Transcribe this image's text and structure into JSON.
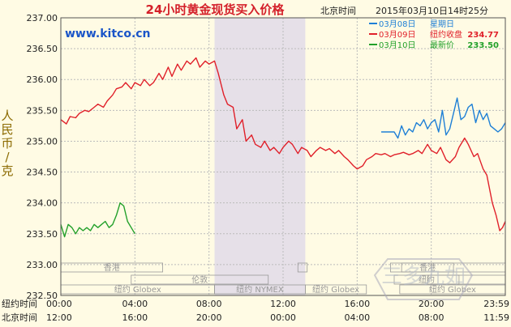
{
  "chart_data": {
    "type": "line",
    "title": "24小时黄金现货买入价格",
    "source": "www.kitco.cn",
    "time_label": "北京时间",
    "date_line": "2015年03月10日14时25分",
    "ylabel": "人民币/克",
    "ylim": [
      232.5,
      237.0
    ],
    "y_ticks": [
      "237.00",
      "236.50",
      "236.00",
      "235.50",
      "235.00",
      "234.50",
      "234.00",
      "233.50",
      "233.00",
      "232.50"
    ],
    "y_tick_values": [
      237.0,
      236.5,
      236.0,
      235.5,
      235.0,
      234.5,
      234.0,
      233.5,
      233.0,
      232.5
    ],
    "x_hours": 24,
    "x_row1_label": "纽约时间",
    "x_row1_ticks": [
      "00:00",
      "04:00",
      "08:00",
      "12:00",
      "16:00",
      "20:00",
      "23:59"
    ],
    "x_row2_label": "北京时间",
    "x_row2_ticks": [
      "12:00",
      "16:00",
      "20:00",
      "00:00",
      "04:00",
      "08:00",
      "11:59"
    ],
    "x_tick_hours": [
      0,
      4,
      8,
      12,
      16,
      20,
      24
    ],
    "shaded_hours": [
      8.3,
      13.2
    ],
    "legend": [
      {
        "date": "03月08日",
        "note": "星期日",
        "color": "#1e7fd6"
      },
      {
        "date": "03月09日",
        "note": "纽约收盘",
        "value": "234.77",
        "color": "#e0202a"
      },
      {
        "date": "03月10日",
        "note": "最新价",
        "value": "233.50",
        "color": "#22a02a"
      }
    ],
    "markets": [
      {
        "name": "香港",
        "row": 1,
        "start": 0,
        "end": 5.5
      },
      {
        "name": "",
        "row": 1,
        "start": 12.8,
        "end": 13.3
      },
      {
        "name": "",
        "row": 1,
        "start": 17.8,
        "end": 24
      },
      {
        "name": "香港",
        "row": 1,
        "start": 18.4,
        "end": 21.2
      },
      {
        "name": "伦敦",
        "row": 2,
        "start": 3.8,
        "end": 11.2
      },
      {
        "name": "",
        "row": 2,
        "start": 19.8,
        "end": 24
      },
      {
        "name": "纽约",
        "row": 2,
        "start": 18.0,
        "end": 21.5
      },
      {
        "name": "纽约 Globex",
        "row": 3,
        "start": 0,
        "end": 8.3
      },
      {
        "name": "纽约 NYMEX",
        "row": 3,
        "start": 8.3,
        "end": 13.2
      },
      {
        "name": "纽约 Globex",
        "row": 3,
        "start": 13.2,
        "end": 16.5
      },
      {
        "name": "纽约 Globex",
        "row": 3,
        "start": 18.3,
        "end": 24
      }
    ],
    "series": [
      {
        "name": "03月09日",
        "color": "#e0202a",
        "x": [
          0,
          0.3,
          0.5,
          0.8,
          1.0,
          1.3,
          1.5,
          1.8,
          2.0,
          2.3,
          2.5,
          2.8,
          3.0,
          3.3,
          3.5,
          3.8,
          4.0,
          4.3,
          4.5,
          4.8,
          5.0,
          5.3,
          5.5,
          5.8,
          6.0,
          6.3,
          6.5,
          6.8,
          7.0,
          7.3,
          7.5,
          7.8,
          8.0,
          8.3,
          8.5,
          8.8,
          9.0,
          9.3,
          9.5,
          9.8,
          10.0,
          10.3,
          10.5,
          10.8,
          11.0,
          11.3,
          11.5,
          11.8,
          12.0,
          12.3,
          12.5,
          12.8,
          13.0,
          13.3,
          13.5,
          13.8,
          14.0,
          14.3,
          14.5,
          14.8,
          15.0,
          15.3,
          15.5,
          15.8,
          16.0,
          16.3,
          16.5,
          16.8,
          17.0,
          17.3,
          17.5,
          17.8,
          18.0,
          18.3,
          18.5,
          18.8,
          19.0,
          19.3,
          19.5,
          19.8,
          20.0,
          20.3,
          20.5,
          20.8,
          21.0,
          21.3,
          21.5,
          21.8,
          22.0,
          22.3,
          22.5,
          22.8,
          23.0,
          23.3,
          23.5,
          23.7,
          23.85,
          24.0
        ],
        "y": [
          235.35,
          235.28,
          235.4,
          235.38,
          235.45,
          235.5,
          235.48,
          235.55,
          235.6,
          235.55,
          235.65,
          235.75,
          235.85,
          235.88,
          235.95,
          235.85,
          235.95,
          235.9,
          236.0,
          235.9,
          235.95,
          236.1,
          236.0,
          236.2,
          236.05,
          236.25,
          236.15,
          236.3,
          236.25,
          236.35,
          236.2,
          236.3,
          236.25,
          236.3,
          236.1,
          235.75,
          235.6,
          235.55,
          235.2,
          235.35,
          235.0,
          235.1,
          234.95,
          234.9,
          235.0,
          234.85,
          234.9,
          234.8,
          234.9,
          235.0,
          234.95,
          234.8,
          234.9,
          234.85,
          234.75,
          234.85,
          234.9,
          234.85,
          234.88,
          234.8,
          234.85,
          234.75,
          234.7,
          234.6,
          234.55,
          234.6,
          234.7,
          234.75,
          234.8,
          234.78,
          234.8,
          234.75,
          234.78,
          234.8,
          234.82,
          234.78,
          234.8,
          234.85,
          234.8,
          234.95,
          234.85,
          234.8,
          234.9,
          234.7,
          234.65,
          234.75,
          234.9,
          235.05,
          234.95,
          234.75,
          234.8,
          234.55,
          234.45,
          234.0,
          233.8,
          233.55,
          233.6,
          233.7
        ]
      },
      {
        "name": "03月08日",
        "color": "#1e7fd6",
        "x": [
          17.3,
          18.0,
          18.2,
          18.4,
          18.6,
          18.8,
          19.0,
          19.2,
          19.4,
          19.6,
          19.8,
          20.0,
          20.2,
          20.4,
          20.6,
          20.8,
          21.0,
          21.2,
          21.4,
          21.6,
          21.8,
          22.0,
          22.2,
          22.4,
          22.6,
          22.8,
          23.0,
          23.2,
          23.4,
          23.6,
          23.8,
          24.0
        ],
        "y": [
          235.15,
          235.15,
          235.05,
          235.25,
          235.1,
          235.2,
          235.15,
          235.3,
          235.25,
          235.35,
          235.2,
          235.3,
          235.35,
          235.15,
          235.5,
          235.1,
          235.2,
          235.45,
          235.7,
          235.35,
          235.4,
          235.55,
          235.6,
          235.3,
          235.5,
          235.35,
          235.45,
          235.25,
          235.2,
          235.15,
          235.2,
          235.3
        ]
      },
      {
        "name": "03月10日",
        "color": "#22a02a",
        "x": [
          0,
          0.2,
          0.4,
          0.6,
          0.8,
          1.0,
          1.2,
          1.4,
          1.6,
          1.8,
          2.0,
          2.2,
          2.4,
          2.6,
          2.8,
          3.0,
          3.2,
          3.4,
          3.6,
          3.8,
          4.0
        ],
        "y": [
          233.65,
          233.45,
          233.65,
          233.6,
          233.5,
          233.6,
          233.55,
          233.6,
          233.55,
          233.65,
          233.6,
          233.65,
          233.7,
          233.6,
          233.65,
          233.8,
          234.0,
          233.95,
          233.7,
          233.6,
          233.5
        ]
      }
    ],
    "watermark": "三多九如"
  }
}
